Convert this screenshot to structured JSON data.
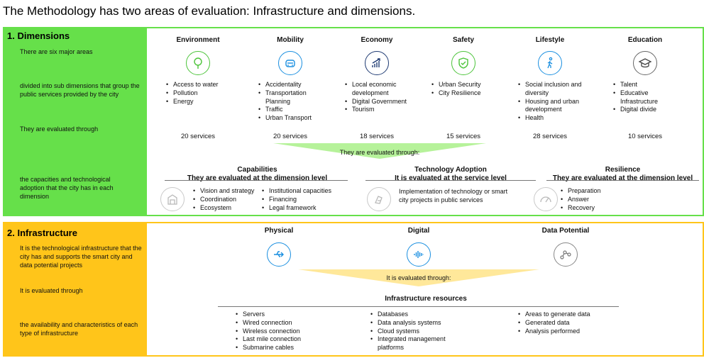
{
  "title": "The Methodology has two areas of evaluation: Infrastructure and dimensions.",
  "dimensions": {
    "heading": "1.  Dimensions",
    "side_texts": [
      "There are six major areas",
      "divided into sub dimensions that group the public services provided by the city",
      "They are evaluated through",
      "the capacities and technological adoption that the city has in each dimension"
    ],
    "areas": [
      {
        "name": "Environment",
        "icon": "tree-icon",
        "items": [
          "Access to water",
          "Pollution",
          "Energy"
        ],
        "services": "20 services"
      },
      {
        "name": "Mobility",
        "icon": "car-icon",
        "items": [
          "Accidentality",
          "Transportation Planning",
          "Traffic",
          "Urban Transport"
        ],
        "services": "20 services"
      },
      {
        "name": "Economy",
        "icon": "growth-chart-icon",
        "items": [
          "Local economic development",
          "Digital Government",
          "Tourism"
        ],
        "services": "18 services"
      },
      {
        "name": "Safety",
        "icon": "shield-check-icon",
        "items": [
          "Urban Security",
          "City Resilience"
        ],
        "services": "15 services"
      },
      {
        "name": "Lifestyle",
        "icon": "walking-person-icon",
        "items": [
          "Social inclusion and diversity",
          "Housing and urban development",
          "Health"
        ],
        "services": "28 services"
      },
      {
        "name": "Education",
        "icon": "graduation-cap-icon",
        "items": [
          "Talent",
          "Educative Infrastructure",
          "Digital divide"
        ],
        "services": "10 services"
      }
    ],
    "banner": "They are evaluated through:",
    "capabilities": {
      "title": "Capabilities",
      "subtitle": "They are evaluated at the dimension level",
      "icon": "building-icon",
      "col1": [
        "Vision and strategy",
        "Coordination",
        "Ecosystem"
      ],
      "col2": [
        "Institutional capacities",
        "Financing",
        "Legal framework"
      ]
    },
    "technology": {
      "title": "Technology Adoption",
      "subtitle": "It is evaluated at the service level",
      "icon": "hand-device-icon",
      "text": "Implementation of technology or smart city projects in public services"
    },
    "resilience": {
      "title": "Resilience",
      "subtitle": "They are evaluated at the dimension level",
      "icon": "gauge-icon",
      "items": [
        "Preparation",
        "Answer",
        "Recovery"
      ]
    },
    "colors": {
      "primary": "#66e04a",
      "icon_green": "#4cc43a",
      "banner": "#b6f29a"
    }
  },
  "infrastructure": {
    "heading": "2. Infrastructure",
    "side_texts": [
      "It is the technological infrastructure that the city has and supports the smart city and data potential projects",
      "It is evaluated through",
      "the availability and characteristics of each type of infrastructure"
    ],
    "types": [
      {
        "name": "Physical",
        "icon": "usb-icon"
      },
      {
        "name": "Digital",
        "icon": "sound-wave-icon"
      },
      {
        "name": "Data Potential",
        "icon": "network-nodes-icon"
      }
    ],
    "banner": "It is evaluated through:",
    "resources_title": "Infrastructure resources",
    "resources": [
      [
        "Servers",
        "Wired connection",
        "Wireless connection",
        "Last mile connection",
        "Submarine cables"
      ],
      [
        "Databases",
        "Data analysis systems",
        "Cloud systems",
        "Integrated management platforms"
      ],
      [
        "Areas to generate data",
        "Generated data",
        "Analysis performed"
      ]
    ],
    "colors": {
      "primary": "#ffc51a",
      "banner": "#ffe89a",
      "icon_blue": "#1a8fe0"
    }
  }
}
